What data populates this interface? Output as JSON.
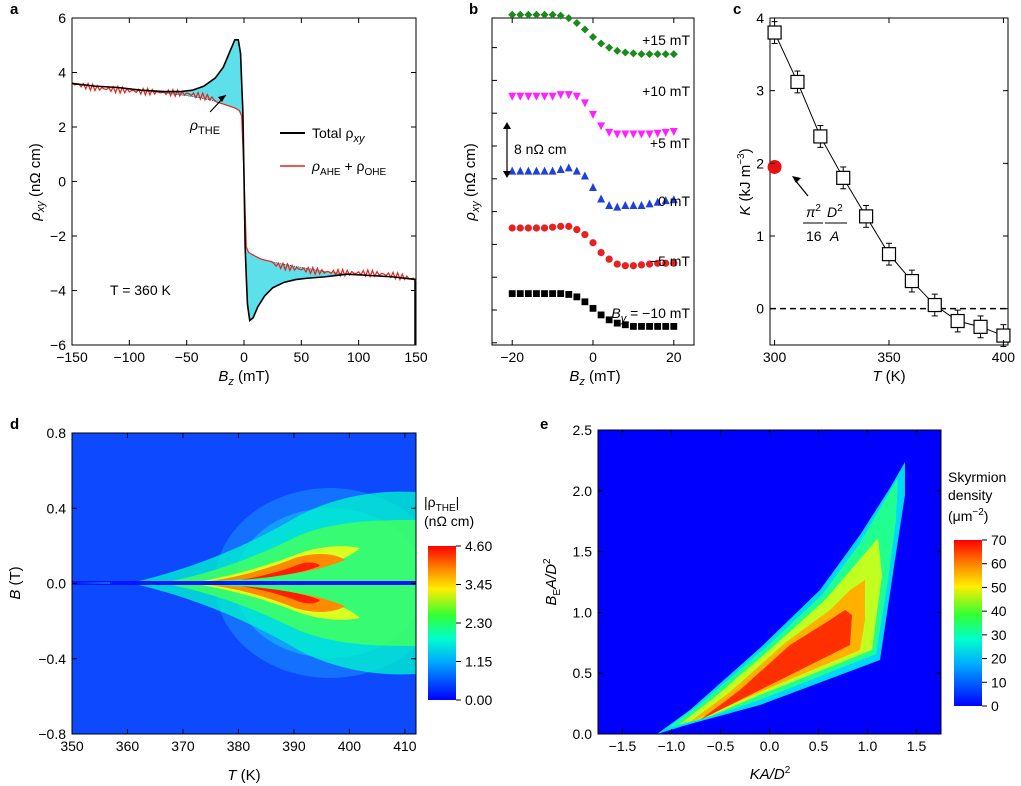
{
  "figure_title": "",
  "colors": {
    "total": "#000000",
    "fit": "#e8211b",
    "the_fill": "#5ee0ea",
    "b_series": [
      "#1a237e",
      "#1b8a1b",
      "#ff21ff",
      "#1f3fe0",
      "#e82020",
      "#000000"
    ],
    "marker_c_red": "#e81010"
  },
  "chart_data": [
    {
      "panel": "a",
      "type": "line",
      "xlabel_main": "B",
      "xlabel_sub": "z",
      "xlabel_unit": " (mT)",
      "ylabel_main": "ρ",
      "ylabel_sub": "xy",
      "ylabel_unit": " (nΩ cm)",
      "xlim": [
        -150,
        150
      ],
      "ylim": [
        -6,
        6
      ],
      "xticks": [
        -150,
        -100,
        -50,
        0,
        50,
        100,
        150
      ],
      "yticks": [
        -6,
        -4,
        -2,
        0,
        2,
        4,
        6
      ],
      "ytick_labels": [
        "−6",
        "−4",
        "−2",
        "0",
        "2",
        "4",
        "6"
      ],
      "xtick_labels": [
        "−150",
        "−100",
        "−50",
        "0",
        "50",
        "100",
        "150"
      ],
      "annotation_the_main": "ρ",
      "annotation_the_sub": "THE",
      "annotation_temp": "T = 360 K",
      "legend": [
        {
          "name_main": "Total ρ",
          "name_sub": "xy"
        },
        {
          "name_main": "ρ",
          "name_sub": "AHE",
          "name_tail": " + ρ",
          "name_sub2": "OHE"
        }
      ],
      "series": [
        {
          "name": "Total ρxy",
          "x": [
            -150,
            -130,
            -110,
            -90,
            -70,
            -55,
            -45,
            -35,
            -25,
            -18,
            -12,
            -8,
            -5,
            -3,
            -2,
            -1,
            0,
            1,
            2,
            3,
            5,
            8,
            12,
            18,
            25,
            35,
            45,
            55,
            70,
            90,
            110,
            130,
            150
          ],
          "y": [
            3.6,
            3.5,
            3.45,
            3.35,
            3.3,
            3.3,
            3.35,
            3.5,
            3.8,
            4.2,
            4.8,
            5.2,
            5.2,
            4.7,
            3.6,
            2.6,
            0.2,
            -2.4,
            -3.5,
            -4.5,
            -5.1,
            -5.0,
            -4.6,
            -4.2,
            -3.9,
            -3.7,
            -3.6,
            -3.55,
            -3.5,
            -3.4,
            -3.45,
            -3.5,
            -3.6
          ]
        },
        {
          "name": "ρAHE + ρOHE",
          "x": [
            -150,
            -130,
            -110,
            -90,
            -70,
            -50,
            -30,
            -15,
            -8,
            -4,
            -2,
            0,
            2,
            4,
            8,
            15,
            30,
            50,
            70,
            90,
            110,
            130,
            150
          ],
          "y": [
            3.6,
            3.5,
            3.45,
            3.35,
            3.25,
            3.15,
            3.0,
            2.8,
            2.7,
            2.6,
            2.4,
            0.2,
            -2.4,
            -2.6,
            -2.7,
            -2.85,
            -3.0,
            -3.15,
            -3.3,
            -3.4,
            -3.45,
            -3.5,
            -3.6
          ]
        }
      ]
    },
    {
      "panel": "b",
      "type": "scatter",
      "xlabel_main": "B",
      "xlabel_sub": "z",
      "xlabel_unit": " (mT)",
      "ylabel_main": "ρ",
      "ylabel_sub": "xy",
      "ylabel_unit": " (nΩ cm)",
      "xlim": [
        -25,
        25
      ],
      "xticks": [
        -20,
        0,
        20
      ],
      "xtick_labels": [
        "−20",
        "0",
        "20"
      ],
      "scale_bar_label": "8 nΩ cm",
      "scale_bar_nohm_cm": 8,
      "series": [
        {
          "name": "+15 mT",
          "marker": "triangle-left",
          "offset": 40,
          "x": [
            -20,
            -18,
            -16,
            -14,
            -12,
            -10,
            -8,
            -6,
            -4,
            -2,
            0,
            2,
            4,
            6,
            8,
            10,
            12,
            14,
            16,
            18,
            20
          ],
          "y": [
            4,
            4,
            4,
            4,
            4,
            4,
            4,
            3.8,
            3.2,
            2.2,
            1.2,
            0.4,
            -0.2,
            -0.6,
            -0.8,
            -0.9,
            -0.9,
            -0.9,
            -0.9,
            -0.9,
            -0.9
          ]
        },
        {
          "name": "+10 mT",
          "marker": "diamond",
          "offset": 32,
          "x": [
            -20,
            -18,
            -16,
            -14,
            -12,
            -10,
            -8,
            -6,
            -4,
            -2,
            0,
            2,
            4,
            6,
            8,
            10,
            12,
            14,
            16,
            18,
            20
          ],
          "y": [
            4,
            4,
            4,
            4,
            4,
            4,
            3.9,
            3.6,
            3.0,
            2.2,
            1.3,
            0.5,
            0,
            -0.4,
            -0.6,
            -0.7,
            -0.8,
            -0.8,
            -0.8,
            -0.8,
            -0.8
          ]
        },
        {
          "name": "+5 mT",
          "marker": "triangle-down",
          "offset": 22,
          "x": [
            -20,
            -18,
            -16,
            -14,
            -12,
            -10,
            -8,
            -6,
            -4,
            -2,
            0,
            2,
            4,
            6,
            8,
            10,
            12,
            14,
            16,
            18,
            20
          ],
          "y": [
            4,
            4,
            4,
            4,
            4,
            4,
            4.2,
            4.2,
            4.0,
            3.2,
            1.8,
            0.4,
            -0.4,
            -0.6,
            -0.6,
            -0.6,
            -0.6,
            -0.6,
            -0.5,
            -0.4,
            -0.3
          ]
        },
        {
          "name": "0 mT",
          "marker": "triangle-up",
          "offset": 13,
          "x": [
            -20,
            -18,
            -16,
            -14,
            -12,
            -10,
            -8,
            -6,
            -4,
            -2,
            0,
            2,
            4,
            6,
            8,
            10,
            12,
            14,
            16,
            18,
            20
          ],
          "y": [
            4,
            4,
            4,
            4,
            4,
            4,
            4.2,
            4.4,
            4.0,
            3.4,
            2.0,
            0.6,
            -0.2,
            -0.4,
            -0.2,
            -0.2,
            -0.2,
            0,
            0.2,
            0.4,
            0.5
          ]
        },
        {
          "name": "−5 mT",
          "marker": "circle",
          "offset": 6,
          "x": [
            -20,
            -18,
            -16,
            -14,
            -12,
            -10,
            -8,
            -6,
            -4,
            -2,
            0,
            2,
            4,
            6,
            8,
            10,
            12,
            14,
            16,
            18,
            20
          ],
          "y": [
            4,
            4,
            4,
            4,
            4,
            4.1,
            4.2,
            4.2,
            3.8,
            3.2,
            2.2,
            1.0,
            0.2,
            -0.4,
            -0.6,
            -0.6,
            -0.5,
            -0.4,
            -0.3,
            -0.3,
            -0.3
          ]
        },
        {
          "name_main": "B",
          "name_sub": "y",
          "name_tail": " = −10 mT",
          "marker": "square",
          "offset": -2,
          "x": [
            -20,
            -18,
            -16,
            -14,
            -12,
            -10,
            -8,
            -6,
            -4,
            -2,
            0,
            2,
            4,
            6,
            8,
            10,
            12,
            14,
            16,
            18,
            20
          ],
          "y": [
            4,
            4,
            4,
            4,
            4,
            4,
            4,
            3.9,
            3.6,
            3.0,
            2.2,
            1.4,
            0.8,
            0.4,
            0.2,
            0,
            0,
            0,
            0,
            0,
            0
          ]
        }
      ]
    },
    {
      "panel": "c",
      "type": "scatter",
      "xlabel_main": "T",
      "xlabel_unit": " (K)",
      "ylabel_main": "K",
      "ylabel_unit": " (kJ m",
      "ylabel_sup": "−3",
      "ylabel_close": ")",
      "xlim": [
        298,
        402
      ],
      "ylim": [
        -0.5,
        4
      ],
      "xticks": [
        300,
        350,
        400
      ],
      "yticks": [
        0,
        1,
        2,
        3,
        4
      ],
      "annot_pi": "π",
      "annot_pi_sup": "2",
      "annot_16": "16",
      "annot_D": "D",
      "annot_D_sup": "2",
      "annot_A": "A",
      "red_point": {
        "x": 300,
        "y": 1.95
      },
      "x": [
        300,
        310,
        320,
        330,
        340,
        350,
        360,
        370,
        380,
        390,
        400
      ],
      "y": [
        3.8,
        3.12,
        2.37,
        1.8,
        1.27,
        0.75,
        0.38,
        0.05,
        -0.17,
        -0.25,
        -0.37
      ],
      "err": [
        0.15,
        0.15,
        0.15,
        0.15,
        0.15,
        0.15,
        0.15,
        0.15,
        0.15,
        0.15,
        0.15
      ]
    },
    {
      "panel": "d",
      "type": "heatmap",
      "xlabel_main": "T",
      "xlabel_unit": " (K)",
      "ylabel_main": "B",
      "ylabel_unit": " (T)",
      "xlim": [
        350,
        412
      ],
      "ylim": [
        -0.8,
        0.8
      ],
      "xticks": [
        350,
        360,
        370,
        380,
        390,
        400,
        410
      ],
      "yticks": [
        -0.8,
        -0.4,
        0.0,
        0.4,
        0.8
      ],
      "ytick_labels": [
        "−0.8",
        "−0.4",
        "0.0",
        "0.4",
        "0.8"
      ],
      "colorbar_title_main": "|ρ",
      "colorbar_title_sub": "THE",
      "colorbar_title_close": "|",
      "colorbar_unit": "(nΩ cm)",
      "colorbar_range": [
        0,
        4.6
      ],
      "colorbar_ticks": [
        "4.60",
        "3.45",
        "2.30",
        "1.15",
        "0.00"
      ]
    },
    {
      "panel": "e",
      "type": "heatmap",
      "xlabel_main": "KA/D",
      "xlabel_sup": "2",
      "ylabel_main": "B",
      "ylabel_sub": "E",
      "ylabel_tail": "A/D",
      "ylabel_sup": "2",
      "xlim": [
        -1.75,
        1.75
      ],
      "ylim": [
        0,
        2.5
      ],
      "xticks": [
        -1.5,
        -1.0,
        -0.5,
        0.0,
        0.5,
        1.0,
        1.5
      ],
      "xtick_labels": [
        "−1.5",
        "−1.0",
        "−0.5",
        "0.0",
        "0.5",
        "1.0",
        "1.5"
      ],
      "yticks": [
        0.0,
        0.5,
        1.0,
        1.5,
        2.0,
        2.5
      ],
      "colorbar_title_lines": [
        "Skyrmion",
        "density"
      ],
      "colorbar_unit_main": "(μm",
      "colorbar_unit_sup": "−2",
      "colorbar_unit_close": ")",
      "colorbar_range": [
        0,
        70
      ],
      "colorbar_ticks": [
        "70",
        "60",
        "50",
        "40",
        "30",
        "20",
        "10",
        "0"
      ]
    }
  ]
}
